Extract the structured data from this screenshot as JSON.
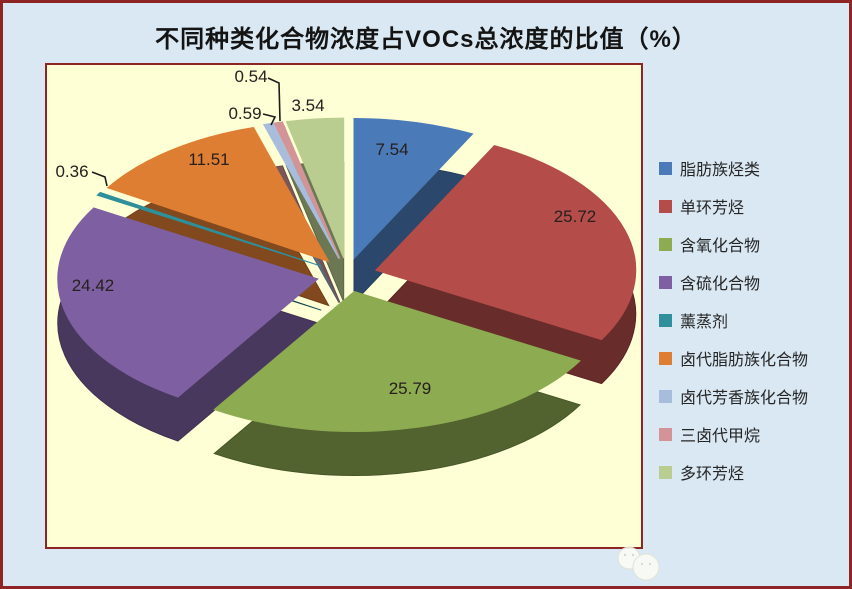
{
  "chart_data": {
    "type": "pie",
    "style": "3d-exploded",
    "title": "不同种类化合物浓度占VOCs总浓度的比值（%）",
    "unit": "%",
    "start_angle_deg": 0,
    "direction": "clockwise",
    "legend_position": "right",
    "total": 100,
    "slices": [
      {
        "label": "脂肪族烃类",
        "value": 7.54,
        "color": "#4a7ab8"
      },
      {
        "label": "单环芳烃",
        "value": 25.72,
        "color": "#b44c4a"
      },
      {
        "label": "含氧化合物",
        "value": 25.79,
        "color": "#8dab51"
      },
      {
        "label": "含硫化合物",
        "value": 24.42,
        "color": "#7e60a2"
      },
      {
        "label": "薰蒸剂",
        "value": 0.36,
        "color": "#2f8f9b"
      },
      {
        "label": "卤代脂肪族化合物",
        "value": 11.51,
        "color": "#de7e32"
      },
      {
        "label": "卤代芳香族化合物",
        "value": 0.59,
        "color": "#a8bcdc"
      },
      {
        "label": "三卤代甲烷",
        "value": 0.54,
        "color": "#d29497"
      },
      {
        "label": "多环芳烃",
        "value": 3.54,
        "color": "#bacd90"
      }
    ]
  },
  "colors": {
    "canvas_bg": "#d9e8f2",
    "plot_bg": "#ffffd6",
    "frame_border": "#8e2424",
    "value_label": "#26201e"
  }
}
